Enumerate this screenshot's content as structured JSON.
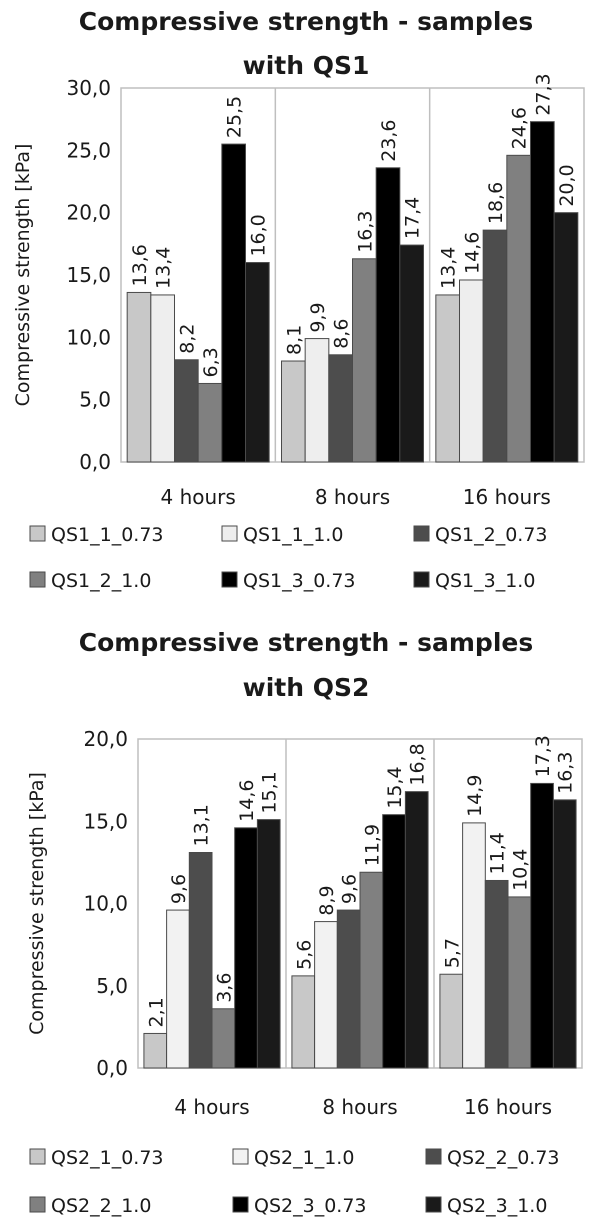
{
  "chart_data": [
    {
      "type": "bar",
      "title": [
        "Compressive strength - samples",
        "with QS1"
      ],
      "ylabel": "Compressive strength [kPa]",
      "xlabel": "",
      "categories": [
        "4 hours",
        "8 hours",
        "16 hours"
      ],
      "ylim": [
        0,
        30
      ],
      "yticks": [
        "0,0",
        "5,0",
        "10,0",
        "15,0",
        "20,0",
        "25,0",
        "30,0"
      ],
      "ytick_values": [
        0,
        5,
        10,
        15,
        20,
        25,
        30
      ],
      "grid": "vertical category dividers",
      "legend_position": "bottom",
      "series": [
        {
          "name": "QS1_1_0.73",
          "color": "#c8c8c8",
          "values": [
            13.6,
            8.1,
            13.4
          ],
          "labels": [
            "13,6",
            "8,1",
            "13,4"
          ]
        },
        {
          "name": "QS1_1_1.0",
          "color": "#eeeeee",
          "values": [
            13.4,
            9.9,
            14.6
          ],
          "labels": [
            "13,4",
            "9,9",
            "14,6"
          ]
        },
        {
          "name": "QS1_2_0.73",
          "color": "#4d4d4d",
          "values": [
            8.2,
            8.6,
            18.6
          ],
          "labels": [
            "8,2",
            "8,6",
            "18,6"
          ]
        },
        {
          "name": "QS1_2_1.0",
          "color": "#808080",
          "values": [
            6.3,
            16.3,
            24.6
          ],
          "labels": [
            "6,3",
            "16,3",
            "24,6"
          ]
        },
        {
          "name": "QS1_3_0.73",
          "color": "#000000",
          "values": [
            25.5,
            23.6,
            27.3
          ],
          "labels": [
            "25,5",
            "23,6",
            "27,3"
          ]
        },
        {
          "name": "QS1_3_1.0",
          "color": "#1a1a1a",
          "values": [
            16.0,
            17.4,
            20.0
          ],
          "labels": [
            "16,0",
            "17,4",
            "20,0"
          ]
        }
      ]
    },
    {
      "type": "bar",
      "title": [
        "Compressive strength - samples",
        "with QS2"
      ],
      "ylabel": "Compressive strength [kPa]",
      "xlabel": "",
      "categories": [
        "4 hours",
        "8 hours",
        "16 hours"
      ],
      "ylim": [
        0,
        20
      ],
      "yticks": [
        "0,0",
        "5,0",
        "10,0",
        "15,0",
        "20,0"
      ],
      "ytick_values": [
        0,
        5,
        10,
        15,
        20
      ],
      "grid": "vertical category dividers",
      "legend_position": "bottom",
      "series": [
        {
          "name": "QS2_1_0.73",
          "color": "#c8c8c8",
          "values": [
            2.1,
            5.6,
            5.7
          ],
          "labels": [
            "2,1",
            "5,6",
            "5,7"
          ]
        },
        {
          "name": "QS2_1_1.0",
          "color": "#f2f2f2",
          "values": [
            9.6,
            8.9,
            14.9
          ],
          "labels": [
            "9,6",
            "8,9",
            "14,9"
          ]
        },
        {
          "name": "QS2_2_0.73",
          "color": "#4d4d4d",
          "values": [
            13.1,
            9.6,
            11.4
          ],
          "labels": [
            "13,1",
            "9,6",
            "11,4"
          ]
        },
        {
          "name": "QS2_2_1.0",
          "color": "#808080",
          "values": [
            3.6,
            11.9,
            10.4
          ],
          "labels": [
            "3,6",
            "11,9",
            "10,4"
          ]
        },
        {
          "name": "QS2_3_0.73",
          "color": "#000000",
          "values": [
            14.6,
            15.4,
            17.3
          ],
          "labels": [
            "14,6",
            "15,4",
            "17,3"
          ]
        },
        {
          "name": "QS2_3_1.0",
          "color": "#1a1a1a",
          "values": [
            15.1,
            16.8,
            16.3
          ],
          "labels": [
            "15,1",
            "16,8",
            "16,3"
          ]
        }
      ]
    }
  ]
}
